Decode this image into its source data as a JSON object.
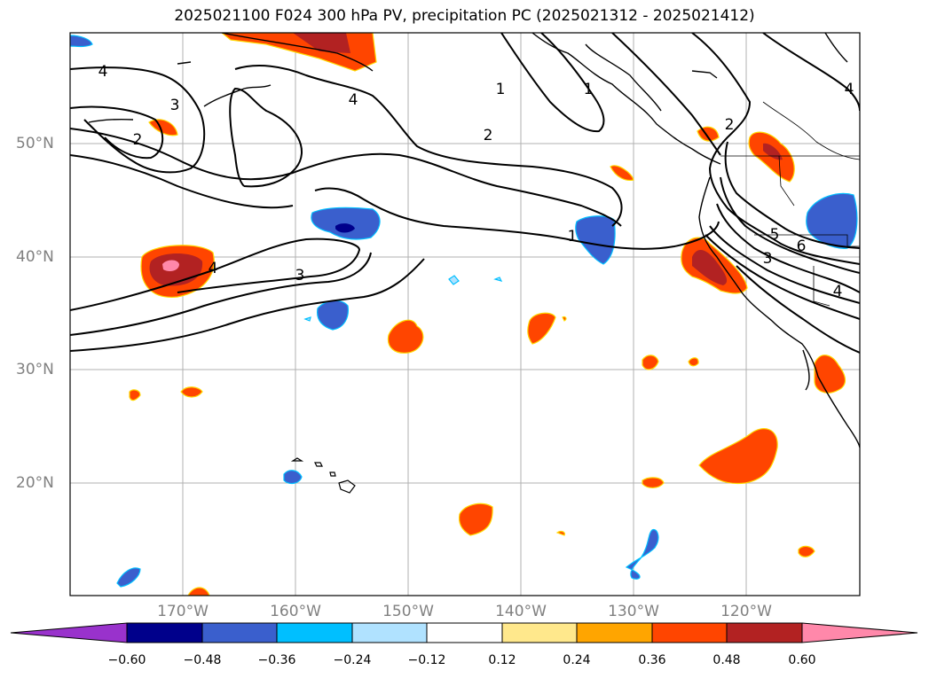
{
  "title": "2025021100 F024 300 hPa PV, precipitation PC (2025021312 - 2025021412)",
  "map": {
    "lat_labels": [
      "50°N",
      "40°N",
      "30°N",
      "20°N"
    ],
    "lon_labels": [
      "170°W",
      "160°W",
      "150°W",
      "140°W",
      "130°W",
      "120°W"
    ],
    "contour_labels": [
      "4",
      "3",
      "2",
      "1",
      "4",
      "2",
      "1",
      "4",
      "3",
      "1",
      "2",
      "5",
      "6",
      "3",
      "4",
      "4"
    ]
  },
  "colorbar": {
    "ticks": [
      "−0.60",
      "−0.48",
      "−0.36",
      "−0.24",
      "−0.12",
      "0.12",
      "0.24",
      "0.36",
      "0.48",
      "0.60"
    ],
    "colors": [
      "#9932cc",
      "#00008b",
      "#3a5fcd",
      "#00bfff",
      "#b0e2ff",
      "#ffffff",
      "#ffe88c",
      "#ffa500",
      "#ff4500",
      "#b22222",
      "#ff88aa"
    ]
  }
}
